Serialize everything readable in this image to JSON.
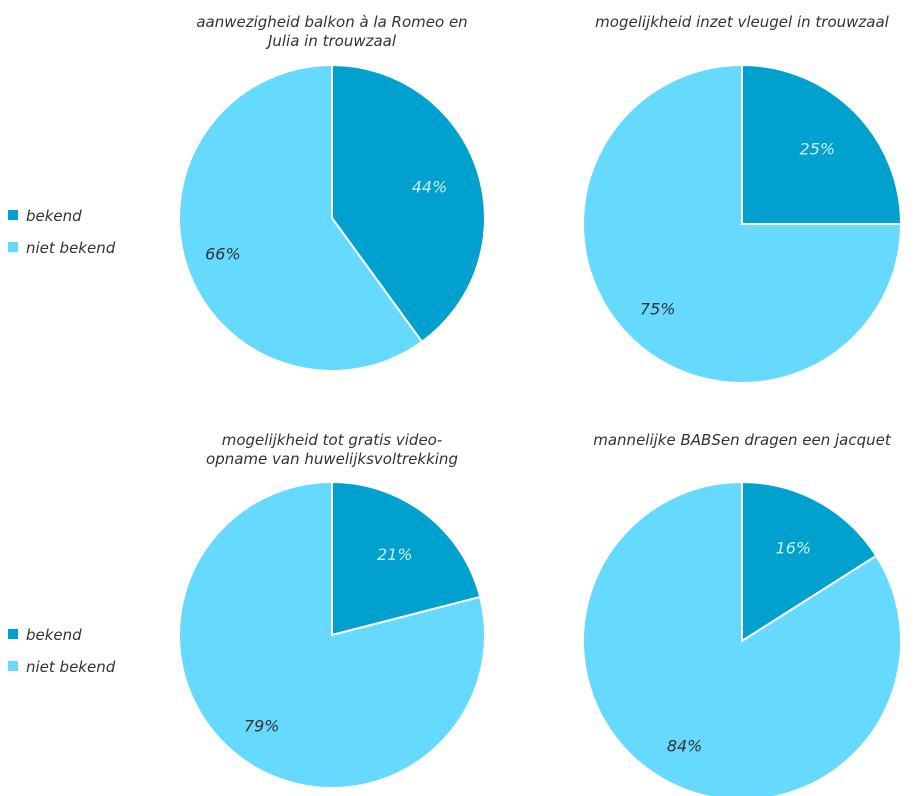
{
  "chart_data": [
    {
      "type": "pie",
      "title_lines": [
        "aanwezigheid balkon à la Romeo en",
        "Julia in trouwzaal"
      ],
      "slices": [
        {
          "name": "bekend",
          "value": 44,
          "label": "44%"
        },
        {
          "name": "niet bekend",
          "value": 66,
          "label": "66%"
        }
      ],
      "legend": {
        "position": "left",
        "entries": [
          "bekend",
          "niet bekend"
        ]
      }
    },
    {
      "type": "pie",
      "title_lines": [
        "mogelijkheid inzet vleugel in trouwzaal"
      ],
      "slices": [
        {
          "name": "bekend",
          "value": 25,
          "label": "25%"
        },
        {
          "name": "niet bekend",
          "value": 75,
          "label": "75%"
        }
      ]
    },
    {
      "type": "pie",
      "title_lines": [
        "mogelijkheid tot gratis video-",
        "opname van huwelijksvoltrekking"
      ],
      "slices": [
        {
          "name": "bekend",
          "value": 21,
          "label": "21%"
        },
        {
          "name": "niet bekend",
          "value": 79,
          "label": "79%"
        }
      ],
      "legend": {
        "position": "left",
        "entries": [
          "bekend",
          "niet bekend"
        ]
      }
    },
    {
      "type": "pie",
      "title_lines": [
        "mannelijke BABSen dragen een jacquet"
      ],
      "slices": [
        {
          "name": "bekend",
          "value": 16,
          "label": "16%"
        },
        {
          "name": "niet bekend",
          "value": 84,
          "label": "84%"
        }
      ]
    }
  ],
  "colors": {
    "bekend": "#00a0cf",
    "niet bekend": "#66d9ff",
    "label_on_dark": "#cdeffb",
    "label_on_light": "#333333"
  }
}
